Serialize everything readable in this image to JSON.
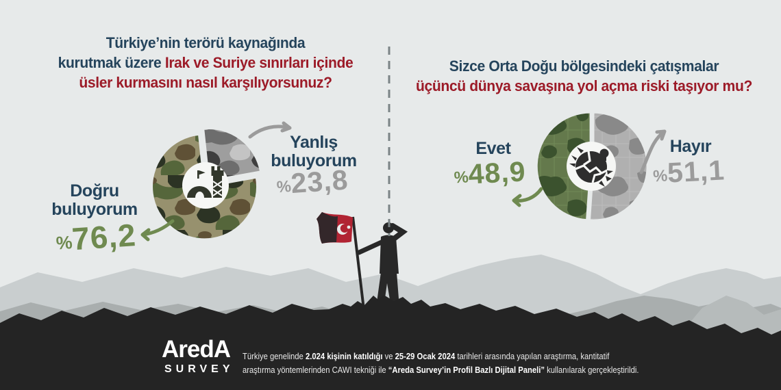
{
  "questions": {
    "left": {
      "line1": "Türkiye’nin terörü kaynağında",
      "line2_blue": "kurutmak üzere ",
      "line2_red": "Irak ve Suriye sınırları içinde",
      "line3": "üsler kurmasını nasıl karşılıyorsunuz?"
    },
    "right": {
      "line1": "Sizce Orta Doğu bölgesindeki çatışmalar",
      "line2": "üçüncü dünya savaşına yol açma riski taşıyor mu?"
    }
  },
  "pie_left_labels": {
    "main_label": "Doğru buluyorum",
    "main_value": "%76,2",
    "alt_label": "Yanlış buluyorum",
    "alt_value": "%23,8"
  },
  "pie_right_labels": {
    "main_label": "Evet",
    "main_value": "%48,9",
    "alt_label": "Hayır",
    "alt_value": "%51,1"
  },
  "footer": {
    "logo_top": "AredA",
    "logo_bottom": "SURVEY",
    "lines": [
      [
        {
          "t": "Türkiye genelinde ",
          "b": false
        },
        {
          "t": "2.024 kişinin katıldığı",
          "b": true
        },
        {
          "t": " ve ",
          "b": false
        },
        {
          "t": "25-29 Ocak 2024",
          "b": true
        },
        {
          "t": " tarihleri arasında yapılan araştırma, kantitatif",
          "b": false
        }
      ],
      [
        {
          "t": "araştırma yöntemlerinden CAWI tekniği ile ",
          "b": false
        },
        {
          "t": "“Areda Survey’in Profil Bazlı Dijital Paneli”",
          "b": true
        },
        {
          "t": " kullanılarak gerçekleştirildi.",
          "b": false
        }
      ]
    ]
  },
  "colors": {
    "background": "#e7eaea",
    "question_blue": "#25445c",
    "question_red": "#9c1b28",
    "value_green": "#6f8a50",
    "value_gray": "#9b9b9b",
    "dark_band": "#242424",
    "flag_red": "#b12433"
  },
  "chart_data": [
    {
      "type": "pie",
      "donut": true,
      "title": "Türkiye’nin terörü kaynağında kurutmak üzere Irak ve Suriye sınırları içinde üsler kurmasını nasıl karşılıyorsunuz?",
      "labels": [
        "Doğru buluyorum",
        "Yanlış buluyorum"
      ],
      "values": [
        76.2,
        23.8
      ],
      "value_labels": [
        "%76,2",
        "%23,8"
      ],
      "style_note": "green camouflage slice = Doğru buluyorum, gray camouflage exploded slice = Yanlış buluyorum, military base icon in donut hole"
    },
    {
      "type": "pie",
      "donut": true,
      "title": "Sizce Orta Doğu bölgesindeki çatışmalar üçüncü dünya savaşına yol açma riski taşıyor mu?",
      "labels": [
        "Evet",
        "Hayır"
      ],
      "values": [
        48.9,
        51.1
      ],
      "value_labels": [
        "%48,9",
        "%51,1"
      ],
      "style_note": "green world-map left half = Evet, gray world-map right half = Hayır, exploding globe icon in donut hole"
    }
  ]
}
